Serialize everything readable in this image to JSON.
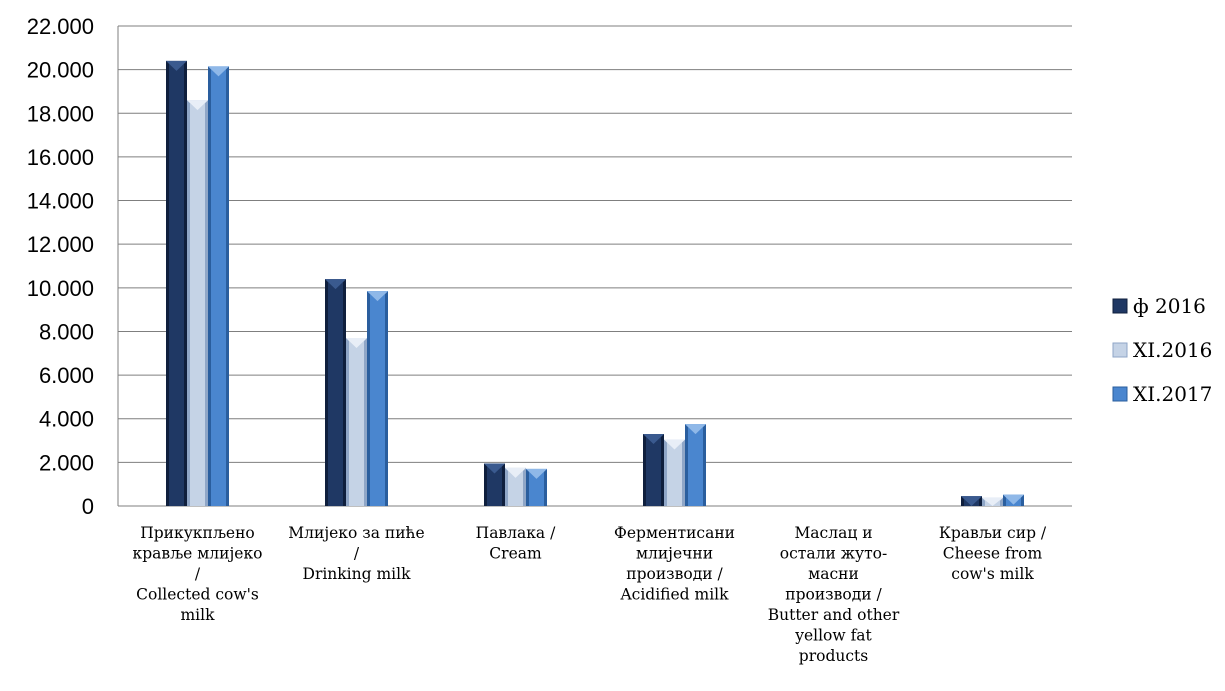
{
  "colors": {
    "series": [
      "#1f3864",
      "#c5d3e6",
      "#4a86cf"
    ],
    "series_dark": [
      "#0f1f3d",
      "#8fa6c7",
      "#2a5e9e"
    ],
    "series_light": [
      "#3a5a8f",
      "#e8eef7",
      "#8fb8e8"
    ],
    "grid": "#7f7f7f",
    "axis": "#7f7f7f"
  },
  "chart_data": {
    "type": "bar",
    "categories": [
      [
        "Прикукпљено",
        "кравље млијеко",
        "/",
        "Collected cow's",
        "milk"
      ],
      [
        "Млијеко за пиће",
        "/",
        "Drinking milk"
      ],
      [
        "Павлака /",
        "Cream"
      ],
      [
        "Ферментисани",
        "млијечни",
        "производи /",
        "Acidified milk"
      ],
      [
        "Маслац и",
        "остали жуто-",
        "масни",
        "производи /",
        "Butter and other",
        "yellow fat",
        "products"
      ],
      [
        "Крављи сир /",
        "Cheese from",
        "cow's milk"
      ]
    ],
    "series": [
      {
        "name": "ф 2016",
        "values": [
          20400,
          10400,
          1950,
          3300,
          0,
          450
        ]
      },
      {
        "name": "XI.2016",
        "values": [
          18600,
          7700,
          1750,
          3050,
          0,
          380
        ]
      },
      {
        "name": "XI.2017",
        "values": [
          20150,
          9850,
          1700,
          3750,
          0,
          520
        ]
      }
    ],
    "ylim": [
      0,
      22000
    ],
    "yticks": [
      "0",
      "2.000",
      "4.000",
      "6.000",
      "8.000",
      "10.000",
      "12.000",
      "14.000",
      "16.000",
      "18.000",
      "20.000",
      "22.000"
    ],
    "grid": true,
    "legend_position": "right"
  }
}
